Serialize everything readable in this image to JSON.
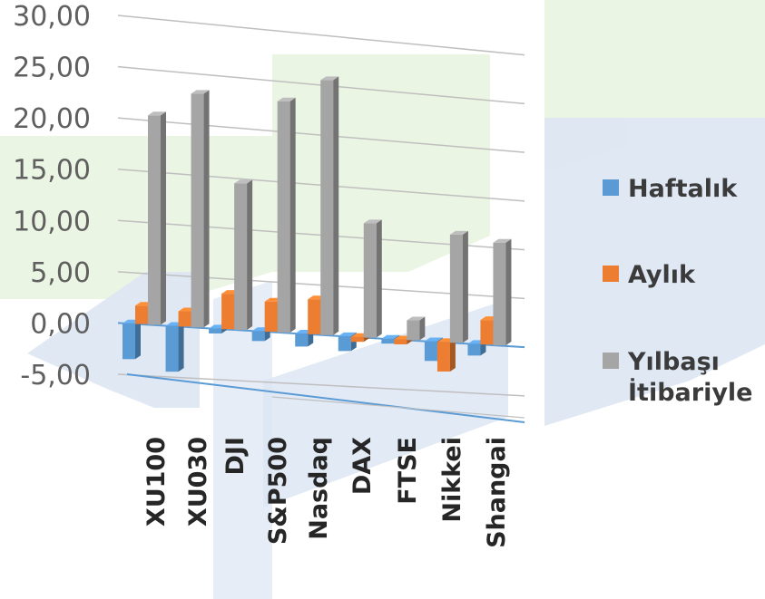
{
  "chart_data": {
    "type": "bar",
    "categories": [
      "XU100",
      "XU030",
      "DJI",
      "S&P500",
      "Nasdaq",
      "DAX",
      "FTSE",
      "Nikkei",
      "Shangai"
    ],
    "series": [
      {
        "name": "Haftalık",
        "color": "#5b9bd5",
        "values": [
          -3.5,
          -4.5,
          -0.5,
          -1.0,
          -1.3,
          -1.5,
          -0.5,
          -2.0,
          -1.2
        ]
      },
      {
        "name": "Aylık",
        "color": "#ed7d31",
        "values": [
          1.8,
          1.5,
          3.5,
          3.0,
          3.5,
          -0.5,
          -0.5,
          -3.0,
          2.5
        ]
      },
      {
        "name": "Yılbaşı İtibariyle",
        "color": "#a5a5a5",
        "values": [
          20.5,
          23.0,
          14.5,
          23.0,
          25.5,
          11.5,
          2.0,
          11.0,
          10.5
        ]
      }
    ],
    "y_ticks": [
      "30,00",
      "25,00",
      "20,00",
      "15,00",
      "10,00",
      "5,00",
      "0,00",
      "-5,00"
    ],
    "ylim": [
      -5,
      30
    ],
    "legend_position": "right",
    "grid": true,
    "style": "3d-clustered-column"
  }
}
